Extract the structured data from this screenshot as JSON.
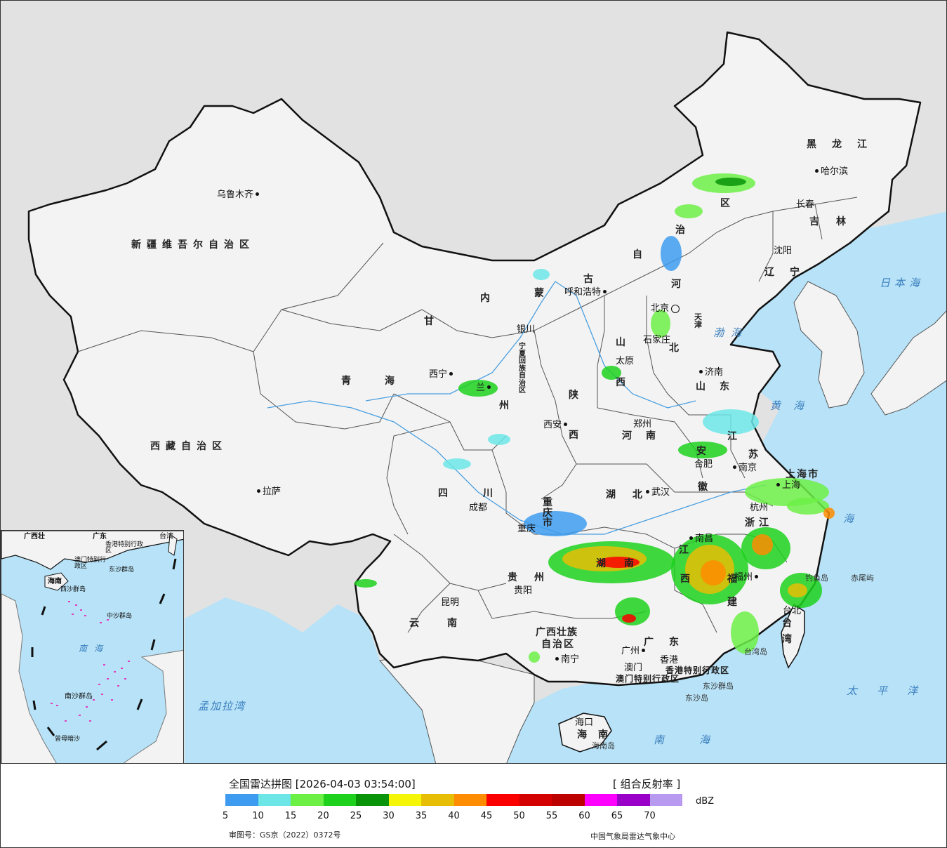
{
  "map_title": "全国雷达拼图 [2026-04-03 03:54:00]",
  "product": "[ 组合反射率 ]",
  "unit": "dBZ",
  "approval": "审图号：GS京（2022）0372号",
  "source": "中国气象局雷达气象中心",
  "legend": {
    "ticks": [
      "5",
      "10",
      "15",
      "20",
      "25",
      "30",
      "35",
      "40",
      "45",
      "50",
      "55",
      "60",
      "65",
      "70"
    ],
    "colors": [
      "#3d9cf0",
      "#6ce6e6",
      "#6df046",
      "#1dd11d",
      "#099309",
      "#f5f507",
      "#e6be05",
      "#fd8c00",
      "#fa0000",
      "#d40000",
      "#bc0000",
      "#fe00fe",
      "#9a01c8",
      "#b79af0"
    ]
  },
  "colors": {
    "land": "#f3f3f3",
    "sea": "#b7e2f7",
    "outside": "#e2e2e2",
    "border": "#111111"
  },
  "provinces": {
    "xinjiang": "新疆维吾尔自治区",
    "xizang": "西藏自治区",
    "qinghai": "青海",
    "gansu": "甘",
    "neimenggu_1": "内",
    "neimenggu_2": "蒙",
    "neimenggu_3": "古",
    "neimenggu_4": "自",
    "neimenggu_5": "治",
    "neimenggu_6": "区",
    "heilongjiang": "黑龙江",
    "jilin": "吉林",
    "liaoning": "辽宁",
    "hebei_1": "河",
    "hebei_2": "北",
    "shanxi_1": "山",
    "shanxi_2": "西",
    "shandong": "山东",
    "henan": "河南",
    "shaanxi_1": "陕",
    "shaanxi_2": "西",
    "ningxia": "宁夏回族自治区",
    "sichuan": "四川",
    "chongqing": "重庆市",
    "hubei": "湖北",
    "hunan": "湖南",
    "jiangxi_1": "江",
    "jiangxi_2": "西",
    "anhui_1": "安",
    "anhui_2": "徽",
    "jiangsu_1": "江",
    "jiangsu_2": "苏",
    "shanghai": "上海市",
    "zhejiang": "浙江",
    "fujian_1": "福",
    "fujian_2": "建",
    "guizhou": "贵州",
    "yunnan": "云南",
    "guangxi_1": "广西壮族",
    "guangxi_2": "自治区",
    "guangdong": "广东",
    "hainan": "海南",
    "taiwan_1": "台",
    "taiwan_2": "湾",
    "hongkong": "香港特别行政区",
    "macau": "澳门特别行政区",
    "gansu_lz": "州",
    "tianjin": "天津"
  },
  "cities": {
    "urumqi": "乌鲁木齐",
    "lhasa": "拉萨",
    "xining": "西宁",
    "lanzhou": "兰",
    "yinchuan": "银川",
    "hohhot": "呼和浩特",
    "beijing": "北京",
    "shijiazhuang": "石家庄",
    "taiyuan": "太原",
    "jinan": "济南",
    "zhengzhou": "郑州",
    "xian": "西安",
    "chengdu": "成都",
    "chongqing": "重庆",
    "wuhan": "武汉",
    "hefei": "合肥",
    "nanjing": "南京",
    "shanghai": "上海",
    "hangzhou": "杭州",
    "nanchang": "南昌",
    "fuzhou": "福州",
    "guiyang": "贵阳",
    "kunming": "昆明",
    "nanning": "南宁",
    "guangzhou": "广州",
    "macao": "澳门",
    "hongkong": "香港",
    "haikou": "海口",
    "taipei": "台北",
    "harbin": "哈尔滨",
    "changchun": "长春",
    "shenyang": "沈阳"
  },
  "islands": {
    "diaoyu": "钓鱼岛",
    "chiwei": "赤尾屿",
    "taiwan_island": "台湾岛",
    "dongsha_qd": "东沙群岛",
    "dongsha_d": "东沙岛",
    "hainan_island": "海南岛"
  },
  "seas": {
    "bohai": "渤海",
    "huanghai": "黄海",
    "donghai": "海",
    "nanhai": "南海",
    "ribenhai": "日本海",
    "taipingyang": "太平洋",
    "mengjiala": "孟加拉湾"
  },
  "inset": {
    "guangxi": "广西壮",
    "guangdong": "广东",
    "taiwan": "台湾",
    "hk": "香港特别行政区",
    "macau": "澳门特别行政区",
    "dongsha": "东沙群岛",
    "hainan": "海南",
    "xisha": "西沙群岛",
    "zhongsha": "中沙群岛",
    "nanhai": "南海",
    "nansha": "南沙群岛",
    "zengmu": "曾母暗沙"
  }
}
